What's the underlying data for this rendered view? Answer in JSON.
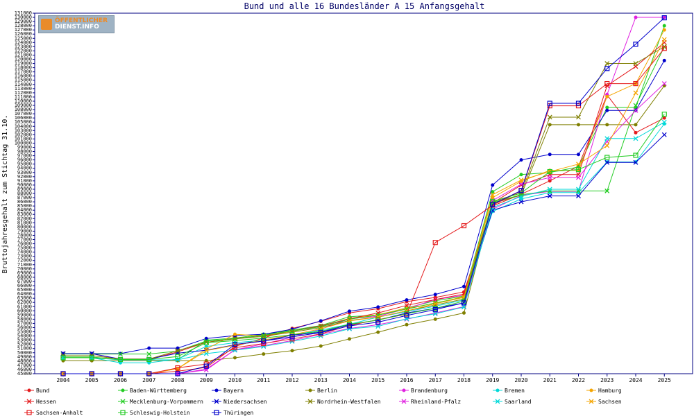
{
  "logo": {
    "line1": "ÖFFENTLICHER",
    "line2": "DIENST.INFO"
  },
  "chart_data": {
    "type": "line",
    "title": "Bund und alle 16 Bundesländer A 15 Anfangsgehalt",
    "ylabel": "Bruttojahresgehalt zum Stichtag 31.10.",
    "xlabel": "",
    "ylim": [
      45000,
      131000
    ],
    "ystep": 1000,
    "grid": false,
    "legend_position": "bottom",
    "x": [
      "2004",
      "2005",
      "2006",
      "2007",
      "2008",
      "2009",
      "2010",
      "2011",
      "2012",
      "2013",
      "2014",
      "2015",
      "2016",
      "2017",
      "2018",
      "2019",
      "2020",
      "2021",
      "2022",
      "2023",
      "2024",
      "2025"
    ],
    "series": [
      {
        "name": "Bund",
        "color": "#e41a1c",
        "marker": "circle",
        "values": [
          45000,
          45000,
          45000,
          45000,
          45600,
          46500,
          51500,
          53500,
          55800,
          57500,
          59500,
          60500,
          62200,
          63200,
          64500,
          85000,
          87800,
          91000,
          94500,
          111500,
          102500,
          106000
        ]
      },
      {
        "name": "Baden-Württemberg",
        "color": "#22cc22",
        "marker": "circle",
        "values": [
          49000,
          49000,
          48300,
          48300,
          48300,
          53000,
          53500,
          54400,
          55400,
          56500,
          58600,
          59000,
          60700,
          62400,
          63500,
          88400,
          92500,
          93000,
          94300,
          108500,
          108500,
          128000
        ]
      },
      {
        "name": "Bayern",
        "color": "#0000cc",
        "marker": "circle",
        "values": [
          49800,
          49800,
          49800,
          51100,
          51100,
          53400,
          54100,
          54400,
          55600,
          57600,
          59900,
          60900,
          62600,
          63900,
          65800,
          90000,
          96000,
          97300,
          97300,
          107800,
          107800,
          119700
        ]
      },
      {
        "name": "Berlin",
        "color": "#7f7f00",
        "marker": "circle",
        "values": [
          48100,
          48100,
          48100,
          48100,
          48100,
          48100,
          48800,
          49700,
          50500,
          51600,
          53300,
          54900,
          56700,
          58000,
          59500,
          85600,
          87600,
          104400,
          104400,
          104400,
          104400,
          113700
        ]
      },
      {
        "name": "Brandenburg",
        "color": "#e020e0",
        "marker": "circle",
        "values": [
          45000,
          45000,
          45000,
          45000,
          45000,
          46100,
          50700,
          52100,
          53700,
          55600,
          58100,
          58700,
          60500,
          62700,
          63700,
          84200,
          87500,
          88500,
          88500,
          111600,
          130000,
          130000
        ]
      },
      {
        "name": "Bremen",
        "color": "#00d8d8",
        "marker": "circle",
        "values": [
          48800,
          48800,
          47600,
          47600,
          48500,
          51500,
          52400,
          53000,
          54200,
          55400,
          56800,
          58500,
          59800,
          61100,
          62600,
          83700,
          86700,
          88200,
          88200,
          95500,
          95500,
          104600
        ]
      },
      {
        "name": "Hamburg",
        "color": "#f5a500",
        "marker": "circle",
        "values": [
          45000,
          45000,
          45000,
          45000,
          46200,
          50900,
          54400,
          54000,
          55100,
          56300,
          58200,
          59100,
          60600,
          61800,
          63400,
          87000,
          90900,
          93500,
          93500,
          111100,
          114200,
          127000
        ]
      },
      {
        "name": "Hessen",
        "color": "#e41a1c",
        "marker": "x",
        "values": [
          49800,
          49800,
          48400,
          48400,
          50200,
          52500,
          53400,
          54100,
          55200,
          56400,
          58100,
          59500,
          61300,
          62700,
          64000,
          85700,
          90000,
          92500,
          92500,
          113700,
          118300,
          124000
        ]
      },
      {
        "name": "Mecklenburg-Vorpommern",
        "color": "#22cc22",
        "marker": "x",
        "values": [
          49700,
          49700,
          49700,
          49700,
          50400,
          52800,
          53300,
          54200,
          55200,
          56200,
          58000,
          59000,
          60400,
          61900,
          63200,
          85800,
          87700,
          88600,
          88600,
          88600,
          109000,
          123000
        ]
      },
      {
        "name": "Niedersachsen",
        "color": "#0000cc",
        "marker": "x",
        "values": [
          49800,
          49800,
          48500,
          48500,
          49900,
          50600,
          51900,
          52800,
          54200,
          54900,
          56700,
          57800,
          59500,
          60600,
          61900,
          84000,
          86000,
          87400,
          87400,
          95400,
          95400,
          102000
        ]
      },
      {
        "name": "Nordrhein-Westfalen",
        "color": "#7f7f00",
        "marker": "x",
        "values": [
          49300,
          49300,
          48500,
          48500,
          50500,
          52500,
          53300,
          53900,
          54900,
          56000,
          57700,
          58500,
          60000,
          61400,
          62800,
          86000,
          88100,
          106200,
          106200,
          119000,
          119000,
          123000
        ]
      },
      {
        "name": "Rheinland-Pfalz",
        "color": "#e020e0",
        "marker": "x",
        "values": [
          45000,
          45000,
          45000,
          45000,
          45000,
          45900,
          50700,
          51700,
          52900,
          54400,
          55800,
          56700,
          58000,
          59500,
          61000,
          86300,
          90200,
          91800,
          91800,
          100400,
          107800,
          114200
        ]
      },
      {
        "name": "Saarland",
        "color": "#00d8d8",
        "marker": "x",
        "values": [
          48800,
          48800,
          48300,
          48300,
          48300,
          49800,
          50600,
          51500,
          52700,
          54000,
          55700,
          56300,
          58100,
          59300,
          60900,
          84600,
          87300,
          89000,
          89000,
          101100,
          101100,
          105000
        ]
      },
      {
        "name": "Sachsen",
        "color": "#f5a500",
        "marker": "x",
        "values": [
          45000,
          45000,
          45000,
          45000,
          46200,
          50500,
          51800,
          53000,
          54300,
          55700,
          57600,
          58500,
          60000,
          61700,
          63200,
          87700,
          91200,
          93200,
          95000,
          99400,
          112000,
          124700
        ]
      },
      {
        "name": "Sachsen-Anhalt",
        "color": "#e41a1c",
        "marker": "square",
        "values": [
          45000,
          45000,
          45000,
          45000,
          46400,
          47300,
          51200,
          52200,
          53300,
          54500,
          56500,
          57900,
          59200,
          76300,
          80300,
          85200,
          88600,
          108900,
          108900,
          114200,
          114200,
          122600
        ]
      },
      {
        "name": "Schleswig-Holstein",
        "color": "#22cc22",
        "marker": "square",
        "values": [
          48800,
          48800,
          48400,
          48400,
          49100,
          52400,
          52900,
          53500,
          54300,
          55100,
          56800,
          57800,
          59300,
          60600,
          62300,
          86100,
          88100,
          93200,
          93700,
          96600,
          97100,
          106900
        ]
      },
      {
        "name": "Thüringen",
        "color": "#0000cc",
        "marker": "square",
        "values": [
          45000,
          45000,
          45000,
          45000,
          45000,
          46800,
          52000,
          52800,
          53800,
          54800,
          56400,
          57300,
          58900,
          60300,
          61900,
          85400,
          88700,
          109500,
          109500,
          117800,
          123600,
          129900
        ]
      }
    ]
  }
}
